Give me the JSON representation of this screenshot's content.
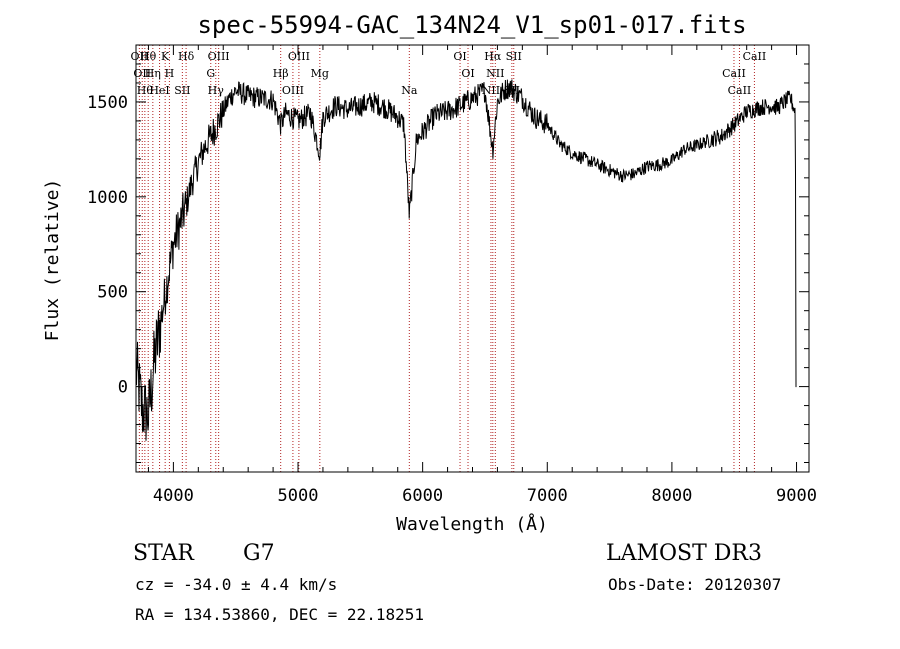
{
  "chart_data": {
    "type": "line",
    "title": "spec-55994-GAC_134N24_V1_sp01-017.fits",
    "xlabel": "Wavelength (Å)",
    "ylabel": "Flux (relative)",
    "xlim": [
      3700,
      9100
    ],
    "ylim": [
      -450,
      1800
    ],
    "xticks": [
      4000,
      5000,
      6000,
      7000,
      8000,
      9000
    ],
    "yticks": [
      0,
      500,
      1000,
      1500
    ],
    "series": [
      {
        "x": [
          3700,
          3750,
          3800,
          3850,
          3900,
          3950,
          4000,
          4050,
          4100,
          4150,
          4200,
          4250,
          4300,
          4350,
          4400,
          4450,
          4500,
          4600,
          4700,
          4800,
          4861,
          4900,
          5000,
          5100,
          5175,
          5200,
          5300,
          5400,
          5500,
          5600,
          5700,
          5800,
          5850,
          5893,
          5950,
          6000,
          6100,
          6200,
          6300,
          6400,
          6500,
          6563,
          6600,
          6650,
          6700,
          6800,
          6900,
          7000,
          7100,
          7200,
          7300,
          7400,
          7500,
          7600,
          7700,
          7800,
          7900,
          8000,
          8100,
          8200,
          8300,
          8400,
          8500,
          8600,
          8700,
          8800,
          8850,
          8900,
          8950,
          8990,
          9000
        ],
        "y": [
          100,
          -120,
          -150,
          150,
          350,
          550,
          750,
          850,
          950,
          1080,
          1180,
          1260,
          1320,
          1380,
          1450,
          1520,
          1560,
          1530,
          1520,
          1510,
          1380,
          1440,
          1400,
          1440,
          1230,
          1420,
          1480,
          1460,
          1480,
          1500,
          1470,
          1420,
          1380,
          900,
          1300,
          1340,
          1430,
          1450,
          1480,
          1520,
          1560,
          1250,
          1500,
          1560,
          1580,
          1520,
          1420,
          1380,
          1280,
          1230,
          1200,
          1170,
          1140,
          1110,
          1120,
          1160,
          1170,
          1190,
          1250,
          1270,
          1300,
          1320,
          1380,
          1450,
          1470,
          1480,
          1470,
          1500,
          1520,
          1450,
          0
        ]
      }
    ],
    "lines": [
      {
        "wavelength": 3727,
        "label": "OII"
      },
      {
        "wavelength": 3750,
        "label": "OII"
      },
      {
        "wavelength": 3771,
        "label": "Hθ"
      },
      {
        "wavelength": 3798,
        "label": "Hθ"
      },
      {
        "wavelength": 3835,
        "label": "Hη"
      },
      {
        "wavelength": 3889,
        "label": "HeI"
      },
      {
        "wavelength": 3934,
        "label": "K"
      },
      {
        "wavelength": 3968,
        "label": "H"
      },
      {
        "wavelength": 4072,
        "label": "SII"
      },
      {
        "wavelength": 4102,
        "label": "Hδ"
      },
      {
        "wavelength": 4300,
        "label": "G"
      },
      {
        "wavelength": 4340,
        "label": "Hγ"
      },
      {
        "wavelength": 4363,
        "label": "OIII"
      },
      {
        "wavelength": 4861,
        "label": "Hβ"
      },
      {
        "wavelength": 4959,
        "label": "OIII"
      },
      {
        "wavelength": 5007,
        "label": "OIII"
      },
      {
        "wavelength": 5175,
        "label": "Mg"
      },
      {
        "wavelength": 5893,
        "label": "Na"
      },
      {
        "wavelength": 6300,
        "label": "OI"
      },
      {
        "wavelength": 6364,
        "label": "OI"
      },
      {
        "wavelength": 6548,
        "label": "NII"
      },
      {
        "wavelength": 6563,
        "label": "Hα"
      },
      {
        "wavelength": 6583,
        "label": "NII"
      },
      {
        "wavelength": 6716,
        "label": "SII"
      },
      {
        "wavelength": 6731,
        "label": "SII"
      },
      {
        "wavelength": 8498,
        "label": "CaII"
      },
      {
        "wavelength": 8542,
        "label": "CaII"
      },
      {
        "wavelength": 8662,
        "label": "CaII"
      }
    ]
  },
  "info": {
    "class": "STAR",
    "subclass": "G7",
    "survey": "LAMOST DR3",
    "cz": "cz = -34.0 ± 4.4 km/s",
    "obs_date": "Obs-Date: 20120307",
    "coords": "RA = 134.53860, DEC =  22.18251"
  },
  "colors": {
    "spectrum": "#000000",
    "line_markers": "#b22222"
  }
}
